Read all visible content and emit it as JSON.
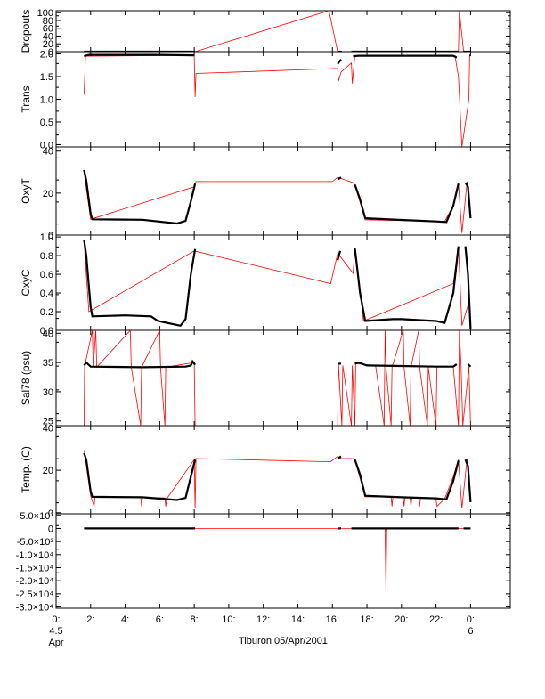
{
  "chart_data": [
    {
      "type": "line",
      "ylabel": "Dropouts",
      "yticks": [
        "100",
        "80",
        "60",
        "40",
        "20",
        "0"
      ],
      "ytick_values": [
        100,
        80,
        60,
        40,
        20,
        0
      ],
      "ylim": [
        0,
        105
      ],
      "red_series": [
        [
          1.62,
          0
        ],
        [
          8.05,
          0
        ],
        [
          15.8,
          105
        ],
        [
          16.3,
          0
        ],
        [
          23.3,
          0
        ],
        [
          23.35,
          105
        ],
        [
          23.6,
          0
        ],
        [
          24.0,
          0
        ]
      ],
      "black_segments": [
        {
          "x": [
            1.62,
            8.05
          ],
          "y": [
            0,
            0
          ]
        },
        {
          "x": [
            16.3,
            16.55
          ],
          "y": [
            0,
            0
          ]
        },
        {
          "x": [
            17.1,
            23.3
          ],
          "y": [
            0,
            0
          ]
        },
        {
          "x": [
            23.6,
            24.0
          ],
          "y": [
            0,
            0
          ]
        }
      ]
    },
    {
      "type": "line",
      "ylabel": "Trans",
      "yticks": [
        "2.0",
        "1.5",
        "1.0",
        "0.5",
        "0.0"
      ],
      "ytick_values": [
        2.0,
        1.5,
        1.0,
        0.5,
        0.0
      ],
      "ylim": [
        -0.05,
        2.05
      ],
      "red_series": [
        [
          1.62,
          1.1
        ],
        [
          1.7,
          1.95
        ],
        [
          8.0,
          1.97
        ],
        [
          8.05,
          1.05
        ],
        [
          8.1,
          1.57
        ],
        [
          16.3,
          1.68
        ],
        [
          16.35,
          1.4
        ],
        [
          16.5,
          1.6
        ],
        [
          17.1,
          1.8
        ],
        [
          17.15,
          1.35
        ],
        [
          17.3,
          1.96
        ],
        [
          23.1,
          1.96
        ],
        [
          23.3,
          1.5
        ],
        [
          23.5,
          -0.05
        ],
        [
          23.9,
          1.0
        ],
        [
          23.95,
          1.97
        ],
        [
          24.0,
          1.97
        ]
      ],
      "black_segments": [
        {
          "x": [
            1.62,
            1.9,
            3.0,
            6.0,
            8.0
          ],
          "y": [
            1.95,
            1.98,
            1.98,
            1.98,
            1.97
          ]
        },
        {
          "x": [
            16.3,
            16.5
          ],
          "y": [
            1.78,
            1.88
          ]
        },
        {
          "x": [
            17.2,
            17.5,
            20.0,
            23.0,
            23.2
          ],
          "y": [
            1.95,
            1.96,
            1.96,
            1.96,
            1.92
          ]
        },
        {
          "x": [
            23.95,
            24.0
          ],
          "y": [
            1.97,
            1.97
          ]
        }
      ]
    },
    {
      "type": "line",
      "ylabel": "OxyT",
      "yticks": [
        "40",
        "20",
        "0"
      ],
      "ytick_values": [
        40,
        20,
        0
      ],
      "ylim": [
        0,
        42
      ],
      "red_series": [
        [
          1.62,
          30
        ],
        [
          2.0,
          7.5
        ],
        [
          8.0,
          23
        ],
        [
          8.1,
          25.5
        ],
        [
          16.0,
          25.5
        ],
        [
          16.3,
          27.5
        ],
        [
          17.2,
          25
        ],
        [
          17.3,
          24
        ],
        [
          17.9,
          7.3
        ],
        [
          22.5,
          6.5
        ],
        [
          23.0,
          14
        ],
        [
          23.3,
          24.5
        ],
        [
          23.5,
          1
        ],
        [
          23.8,
          25.5
        ],
        [
          24.0,
          8
        ]
      ],
      "black_segments": [
        {
          "x": [
            1.62,
            1.75,
            2.0,
            2.1,
            5.0,
            7.0,
            7.5,
            7.8,
            8.05
          ],
          "y": [
            31,
            26,
            10,
            7.5,
            7.3,
            5.5,
            6.8,
            16,
            24.5
          ]
        },
        {
          "x": [
            16.3,
            16.5
          ],
          "y": [
            26.5,
            27.5
          ]
        },
        {
          "x": [
            17.3,
            17.6,
            17.9,
            20.0,
            22.0,
            22.6,
            23.0,
            23.3
          ],
          "y": [
            24,
            17,
            8,
            7.2,
            6.5,
            6.2,
            14,
            24.5
          ]
        },
        {
          "x": [
            23.7,
            23.85,
            24.0
          ],
          "y": [
            25,
            23,
            8
          ]
        }
      ]
    },
    {
      "type": "line",
      "ylabel": "OxyC",
      "yticks": [
        "1.0",
        "0.8",
        "0.6",
        "0.4",
        "0.2",
        "0.0"
      ],
      "ytick_values": [
        1.0,
        0.8,
        0.6,
        0.4,
        0.2,
        0.0
      ],
      "ylim": [
        0,
        1.02
      ],
      "red_series": [
        [
          1.62,
          0.95
        ],
        [
          1.9,
          0.2
        ],
        [
          8.0,
          0.85
        ],
        [
          15.9,
          0.5
        ],
        [
          16.3,
          0.82
        ],
        [
          16.5,
          0.78
        ],
        [
          17.2,
          0.61
        ],
        [
          17.3,
          0.88
        ],
        [
          17.8,
          0.1
        ],
        [
          23.0,
          0.5
        ],
        [
          23.3,
          0.9
        ],
        [
          23.5,
          0.05
        ],
        [
          23.9,
          0.3
        ],
        [
          24.0,
          0.02
        ]
      ],
      "black_segments": [
        {
          "x": [
            1.62,
            1.75,
            2.0,
            2.1,
            4.0,
            5.5,
            5.9,
            7.2,
            7.5,
            7.8,
            8.05
          ],
          "y": [
            0.97,
            0.8,
            0.25,
            0.15,
            0.16,
            0.15,
            0.1,
            0.05,
            0.12,
            0.6,
            0.87
          ]
        },
        {
          "x": [
            16.3,
            16.45
          ],
          "y": [
            0.75,
            0.85
          ]
        },
        {
          "x": [
            17.3,
            17.6,
            17.9,
            19.5,
            20.0,
            22.0,
            22.5,
            23.0,
            23.3
          ],
          "y": [
            0.88,
            0.4,
            0.1,
            0.12,
            0.12,
            0.1,
            0.08,
            0.4,
            0.9
          ]
        },
        {
          "x": [
            23.7,
            23.85,
            24.0
          ],
          "y": [
            0.9,
            0.6,
            0.02
          ]
        }
      ]
    },
    {
      "type": "line",
      "ylabel": "Sal78 (psu)",
      "yticks": [
        "40",
        "35",
        "30",
        "25"
      ],
      "ytick_values": [
        40,
        35,
        30,
        25
      ],
      "ylim": [
        24.2,
        40.5
      ],
      "red_series": [
        [
          1.62,
          24.2
        ],
        [
          1.65,
          34.3
        ],
        [
          2.1,
          40.5
        ],
        [
          2.15,
          34.2
        ],
        [
          2.3,
          40.5
        ],
        [
          2.35,
          34.2
        ],
        [
          4.3,
          40.5
        ],
        [
          4.35,
          34.2
        ],
        [
          4.9,
          24.2
        ],
        [
          4.95,
          34.2
        ],
        [
          6.0,
          40.5
        ],
        [
          6.05,
          34.2
        ],
        [
          6.3,
          24.2
        ],
        [
          6.35,
          34.2
        ],
        [
          8.0,
          35
        ],
        [
          8.05,
          24.2
        ],
        [
          16.3,
          24.2
        ],
        [
          16.35,
          34.8
        ],
        [
          16.55,
          24.2
        ],
        [
          16.6,
          34.5
        ],
        [
          17.1,
          24.2
        ],
        [
          17.15,
          34.5
        ],
        [
          17.3,
          24.2
        ],
        [
          17.35,
          34.8
        ],
        [
          18.5,
          34.5
        ],
        [
          19.0,
          24.2
        ],
        [
          19.05,
          40.5
        ],
        [
          19.1,
          34.2
        ],
        [
          19.4,
          24.2
        ],
        [
          19.45,
          34.2
        ],
        [
          20.1,
          40.5
        ],
        [
          20.15,
          34.2
        ],
        [
          20.5,
          24.2
        ],
        [
          20.55,
          34.2
        ],
        [
          21.0,
          40.5
        ],
        [
          21.05,
          34.2
        ],
        [
          21.5,
          24.2
        ],
        [
          21.55,
          34.2
        ],
        [
          22.0,
          24.2
        ],
        [
          22.05,
          34.3
        ],
        [
          23.0,
          34.3
        ],
        [
          23.3,
          24.2
        ],
        [
          23.35,
          40.5
        ],
        [
          23.45,
          34.5
        ],
        [
          23.55,
          24.2
        ],
        [
          23.9,
          34.3
        ],
        [
          24.0,
          24.2
        ]
      ],
      "black_segments": [
        {
          "x": [
            1.62,
            1.75,
            2.0,
            5.0,
            7.5,
            7.8,
            7.9,
            8.05
          ],
          "y": [
            34.5,
            35,
            34.3,
            34.2,
            34.3,
            34.5,
            35.2,
            34.6
          ]
        },
        {
          "x": [
            16.3,
            16.5
          ],
          "y": [
            34.8,
            34.8
          ]
        },
        {
          "x": [
            17.3,
            17.5,
            18.0,
            20.0,
            22.0,
            23.0,
            23.2
          ],
          "y": [
            34.8,
            35,
            34.5,
            34.4,
            34.3,
            34.3,
            34.7
          ]
        },
        {
          "x": [
            23.85,
            24.0
          ],
          "y": [
            34.7,
            34.3
          ]
        }
      ]
    },
    {
      "type": "line",
      "ylabel": "Temp. (C)",
      "yticks": [
        "40",
        "20",
        "0"
      ],
      "ytick_values": [
        40,
        20,
        0
      ],
      "ylim": [
        -0.5,
        41
      ],
      "red_series": [
        [
          1.62,
          29.5
        ],
        [
          2.0,
          8
        ],
        [
          2.2,
          3
        ],
        [
          2.25,
          7.5
        ],
        [
          4.9,
          7.5
        ],
        [
          4.95,
          3
        ],
        [
          5.0,
          7.3
        ],
        [
          6.3,
          7
        ],
        [
          6.35,
          3
        ],
        [
          6.4,
          6.5
        ],
        [
          8.0,
          25
        ],
        [
          8.05,
          2
        ],
        [
          8.1,
          25.5
        ],
        [
          15.9,
          24
        ],
        [
          16.3,
          26.5
        ],
        [
          16.5,
          25.5
        ],
        [
          17.2,
          25.5
        ],
        [
          17.3,
          24.8
        ],
        [
          17.9,
          7.5
        ],
        [
          19.4,
          7.3
        ],
        [
          19.45,
          3
        ],
        [
          19.5,
          7.3
        ],
        [
          20.1,
          7.2
        ],
        [
          20.15,
          3
        ],
        [
          20.2,
          7.2
        ],
        [
          20.5,
          7
        ],
        [
          20.55,
          3
        ],
        [
          20.6,
          7
        ],
        [
          21.0,
          7
        ],
        [
          21.05,
          3
        ],
        [
          21.1,
          7
        ],
        [
          22.0,
          6.5
        ],
        [
          22.05,
          3
        ],
        [
          22.5,
          6.5
        ],
        [
          23.0,
          17
        ],
        [
          23.3,
          25
        ],
        [
          23.5,
          2
        ],
        [
          23.8,
          25.5
        ],
        [
          24.0,
          5
        ]
      ],
      "black_segments": [
        {
          "x": [
            1.62,
            1.75,
            2.0,
            2.1,
            5.0,
            7.0,
            7.5,
            7.8,
            8.05
          ],
          "y": [
            28,
            25,
            10,
            7.5,
            7.3,
            6,
            7,
            17,
            25
          ]
        },
        {
          "x": [
            16.3,
            16.5
          ],
          "y": [
            25.5,
            26.5
          ]
        },
        {
          "x": [
            17.3,
            17.6,
            17.9,
            20.0,
            22.0,
            22.6,
            23.0,
            23.3
          ],
          "y": [
            25,
            18,
            8,
            7.3,
            6.8,
            6.3,
            15,
            24.5
          ]
        },
        {
          "x": [
            23.7,
            23.85,
            24.0
          ],
          "y": [
            25,
            22,
            5
          ]
        }
      ]
    },
    {
      "type": "line",
      "ylabel": "",
      "yticks": [
        "5.0×10³",
        "0",
        "-5.0×10³",
        "-1.0×10⁴",
        "-1.5×10⁴",
        "-2.0×10⁴",
        "-2.5×10⁴",
        "-3.0×10⁴"
      ],
      "ytick_values": [
        5000,
        0,
        -5000,
        -10000,
        -15000,
        -20000,
        -25000,
        -30000
      ],
      "ylim": [
        -30500,
        5600
      ],
      "red_series": [
        [
          1.62,
          0
        ],
        [
          8.05,
          0
        ],
        [
          16.3,
          0
        ],
        [
          19.05,
          0
        ],
        [
          19.1,
          -25000
        ],
        [
          19.15,
          0
        ],
        [
          24.0,
          0
        ]
      ],
      "black_segments": [
        {
          "x": [
            1.62,
            8.05
          ],
          "y": [
            0,
            0
          ]
        },
        {
          "x": [
            16.3,
            16.5
          ],
          "y": [
            0,
            0
          ]
        },
        {
          "x": [
            17.1,
            23.3
          ],
          "y": [
            0,
            0
          ]
        },
        {
          "x": [
            23.6,
            24.0
          ],
          "y": [
            0,
            0
          ]
        }
      ]
    }
  ],
  "x_axis": {
    "xlim": [
      0,
      26.3
    ],
    "ticks": [
      {
        "value": 0,
        "label": "0:"
      },
      {
        "value": 2,
        "label": "2:"
      },
      {
        "value": 4,
        "label": "4:"
      },
      {
        "value": 6,
        "label": "6:"
      },
      {
        "value": 8,
        "label": "8:"
      },
      {
        "value": 10,
        "label": "10:"
      },
      {
        "value": 12,
        "label": "12:"
      },
      {
        "value": 14,
        "label": "14:"
      },
      {
        "value": 16,
        "label": "16:"
      },
      {
        "value": 18,
        "label": "18:"
      },
      {
        "value": 20,
        "label": "20:"
      },
      {
        "value": 22,
        "label": "22:"
      },
      {
        "value": 24,
        "label": "0:"
      }
    ],
    "sub_labels": [
      {
        "value": 0,
        "line1": "4.5",
        "line2": "Apr"
      },
      {
        "value": 24,
        "line1": "6",
        "line2": ""
      }
    ],
    "title": "Tiburon 05/Apr/2001"
  }
}
